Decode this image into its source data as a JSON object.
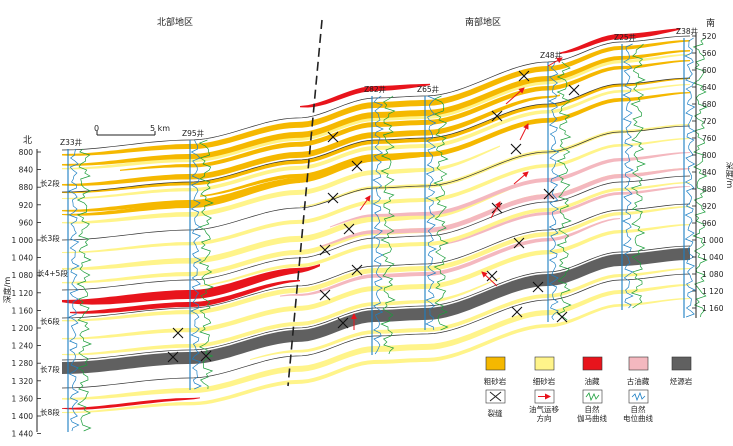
{
  "regions": {
    "north": "北部地区",
    "south": "南部地区"
  },
  "orientation": {
    "north": "北",
    "south": "南"
  },
  "scale_bar": {
    "zero": "0",
    "end": "5 km"
  },
  "wells": [
    {
      "name": "Z33井"
    },
    {
      "name": "Z95井"
    },
    {
      "name": "Z82井"
    },
    {
      "name": "Z65井"
    },
    {
      "name": "Z48井"
    },
    {
      "name": "Z25井"
    },
    {
      "name": "Z38井"
    }
  ],
  "left_axis": {
    "title": "深度/m",
    "ticks": [
      "800",
      "840",
      "880",
      "920",
      "960",
      "1 000",
      "1 040",
      "1 080",
      "1 120",
      "1 160",
      "1 200",
      "1 240",
      "1 280",
      "1 320",
      "1 360",
      "1 400",
      "1 440"
    ]
  },
  "right_axis": {
    "title": "深度/m",
    "ticks": [
      "520",
      "560",
      "600",
      "640",
      "680",
      "720",
      "760",
      "800",
      "840",
      "880",
      "920",
      "960",
      "1 000",
      "1 040",
      "1 080",
      "1 120",
      "1 160"
    ]
  },
  "members": [
    "长2段",
    "长3段",
    "长4+5段",
    "长6段",
    "长7段",
    "长8段"
  ],
  "legend": [
    {
      "label": "粗砂岩",
      "color": "#f5b800"
    },
    {
      "label": "细砂岩",
      "color": "#fff48a"
    },
    {
      "label": "油藏",
      "color": "#e8141c"
    },
    {
      "label": "古油藏",
      "color": "#f4b8bf"
    },
    {
      "label": "烃源岩",
      "color": "#606060"
    },
    {
      "label": "裂缝"
    },
    {
      "label": "油气运移方向"
    },
    {
      "label": "自然伽马曲线"
    },
    {
      "label": "自然电位曲线"
    }
  ],
  "colors": {
    "coarse_sand": "#f5b800",
    "fine_sand": "#fff48a",
    "oil": "#e8141c",
    "paleo_oil": "#f4b8bf",
    "source_rock": "#606060",
    "well_line": "#1b7fc4",
    "gamma_curve": "#1a9d3a",
    "sp_curve": "#1b7fc4",
    "arrow": "#e8141c"
  }
}
